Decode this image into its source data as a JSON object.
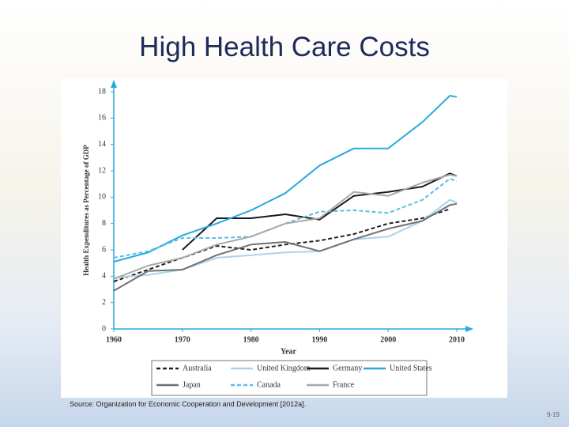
{
  "title": "High Health Care Costs",
  "source": "Source:  Organization for Economic Cooperation and Development [2012a].",
  "page_number": "9-19",
  "chart_data": {
    "type": "line",
    "xlabel": "Year",
    "ylabel": "Health Expenditures as Percentage of GDP",
    "xlim": [
      1960,
      2010
    ],
    "xticks": [
      1960,
      1970,
      1980,
      1990,
      2000,
      2010
    ],
    "ylim": [
      0,
      18
    ],
    "yticks": [
      0,
      2,
      4,
      6,
      8,
      10,
      12,
      14,
      16,
      18
    ],
    "grid": false,
    "series": [
      {
        "name": "Australia",
        "color": "#222222",
        "dashed": true,
        "x": [
          1960,
          1965,
          1970,
          1975,
          1980,
          1985,
          1990,
          1995,
          2000,
          2005,
          2009
        ],
        "values": [
          3.6,
          4.5,
          5.4,
          6.3,
          6.0,
          6.4,
          6.7,
          7.2,
          8.0,
          8.4,
          9.1
        ]
      },
      {
        "name": "United Kingdom",
        "color": "#a9d4ea",
        "dashed": false,
        "x": [
          1960,
          1965,
          1970,
          1975,
          1980,
          1985,
          1990,
          1995,
          2000,
          2005,
          2009,
          2010
        ],
        "values": [
          3.9,
          4.1,
          4.5,
          5.4,
          5.6,
          5.8,
          5.9,
          6.8,
          7.0,
          8.2,
          9.8,
          9.6
        ]
      },
      {
        "name": "Germany",
        "color": "#1a1a1a",
        "dashed": false,
        "x": [
          1970,
          1975,
          1980,
          1985,
          1990,
          1995,
          2000,
          2005,
          2009,
          2010
        ],
        "values": [
          6.0,
          8.4,
          8.4,
          8.7,
          8.3,
          10.1,
          10.4,
          10.8,
          11.8,
          11.6
        ]
      },
      {
        "name": "United States",
        "color": "#29a8e0",
        "dashed": false,
        "x": [
          1960,
          1965,
          1970,
          1975,
          1980,
          1985,
          1990,
          1995,
          2000,
          2005,
          2009,
          2010
        ],
        "values": [
          5.1,
          5.8,
          7.1,
          8.0,
          9.0,
          10.3,
          12.4,
          13.7,
          13.7,
          15.7,
          17.7,
          17.6
        ]
      },
      {
        "name": "Japan",
        "color": "#707070",
        "dashed": false,
        "x": [
          1960,
          1965,
          1970,
          1975,
          1980,
          1985,
          1990,
          1995,
          2000,
          2005,
          2009,
          2010
        ],
        "values": [
          2.9,
          4.4,
          4.5,
          5.6,
          6.4,
          6.6,
          5.9,
          6.8,
          7.6,
          8.2,
          9.4,
          9.5
        ]
      },
      {
        "name": "Canada",
        "color": "#5bbde6",
        "dashed": true,
        "x": [
          1960,
          1965,
          1970,
          1975,
          1980,
          1985,
          1990,
          1995,
          2000,
          2005,
          2009,
          2010
        ],
        "values": [
          5.4,
          5.9,
          6.9,
          6.9,
          7.0,
          8.0,
          8.9,
          9.0,
          8.8,
          9.8,
          11.4,
          11.2
        ]
      },
      {
        "name": "France",
        "color": "#a8a8a8",
        "dashed": false,
        "x": [
          1960,
          1965,
          1970,
          1975,
          1980,
          1985,
          1990,
          1995,
          2000,
          2005,
          2009,
          2010
        ],
        "values": [
          3.8,
          4.8,
          5.4,
          6.4,
          7.0,
          8.0,
          8.4,
          10.4,
          10.1,
          11.1,
          11.7,
          11.6
        ]
      }
    ]
  }
}
